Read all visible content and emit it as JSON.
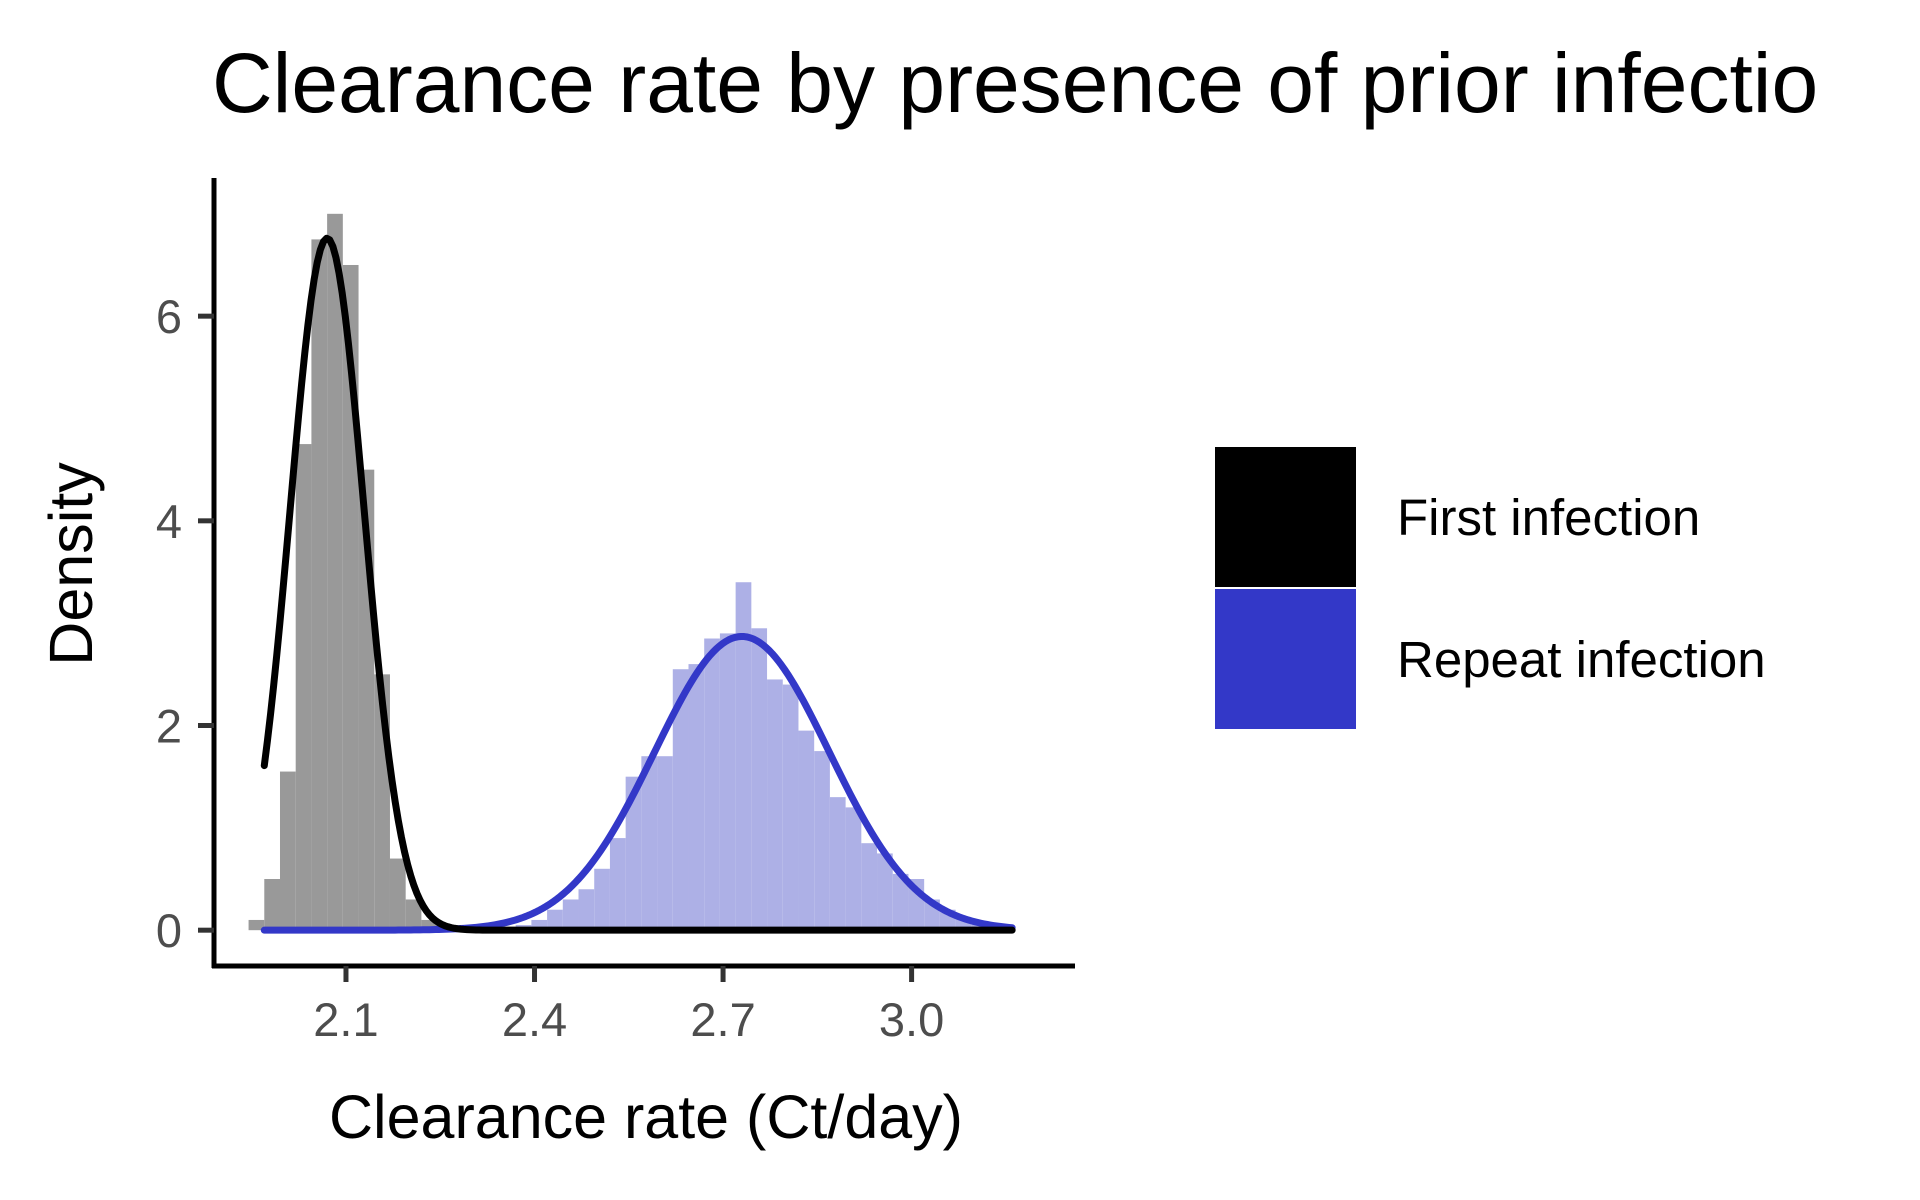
{
  "chart_data": {
    "type": "histogram-density",
    "title": "Clearance rate by presence of prior infectio",
    "xlabel": "Clearance rate (Ct/day)",
    "ylabel": "Density",
    "xlim": [
      1.89,
      3.26
    ],
    "ylim": [
      -0.35,
      7.35
    ],
    "x_ticks": [
      "2.1",
      "2.4",
      "2.7",
      "3.0"
    ],
    "y_ticks": [
      "0",
      "2",
      "4",
      "6"
    ],
    "grid": false,
    "legend_position": "right",
    "bin_width": 0.025,
    "series": [
      {
        "name": "First infection",
        "bar_color": "#999999",
        "line_color": "#000000",
        "bins": [
          {
            "x": 1.9575,
            "y": 0.1
          },
          {
            "x": 1.9825,
            "y": 0.5
          },
          {
            "x": 2.0075,
            "y": 1.55
          },
          {
            "x": 2.0325,
            "y": 4.75
          },
          {
            "x": 2.0575,
            "y": 6.75
          },
          {
            "x": 2.0825,
            "y": 7.0
          },
          {
            "x": 2.1075,
            "y": 6.5
          },
          {
            "x": 2.1325,
            "y": 4.5
          },
          {
            "x": 2.1575,
            "y": 2.5
          },
          {
            "x": 2.1825,
            "y": 0.7
          },
          {
            "x": 2.2075,
            "y": 0.3
          },
          {
            "x": 2.2325,
            "y": 0.1
          }
        ],
        "density": {
          "type": "normal",
          "mean": 2.07,
          "sd": 0.059
        }
      },
      {
        "name": "Repeat infection",
        "bar_color": "#adb0e6",
        "line_color": "#3338c8",
        "bins": [
          {
            "x": 2.3825,
            "y": 0.05
          },
          {
            "x": 2.4075,
            "y": 0.1
          },
          {
            "x": 2.4325,
            "y": 0.2
          },
          {
            "x": 2.4575,
            "y": 0.3
          },
          {
            "x": 2.4825,
            "y": 0.4
          },
          {
            "x": 2.5075,
            "y": 0.6
          },
          {
            "x": 2.5325,
            "y": 0.9
          },
          {
            "x": 2.5575,
            "y": 1.5
          },
          {
            "x": 2.5825,
            "y": 1.7
          },
          {
            "x": 2.6075,
            "y": 1.7
          },
          {
            "x": 2.6325,
            "y": 2.55
          },
          {
            "x": 2.6575,
            "y": 2.6
          },
          {
            "x": 2.6825,
            "y": 2.85
          },
          {
            "x": 2.7075,
            "y": 2.9
          },
          {
            "x": 2.7325,
            "y": 3.4
          },
          {
            "x": 2.7575,
            "y": 2.95
          },
          {
            "x": 2.7825,
            "y": 2.45
          },
          {
            "x": 2.8075,
            "y": 2.4
          },
          {
            "x": 2.8325,
            "y": 1.95
          },
          {
            "x": 2.8575,
            "y": 1.75
          },
          {
            "x": 2.8825,
            "y": 1.3
          },
          {
            "x": 2.9075,
            "y": 1.2
          },
          {
            "x": 2.9325,
            "y": 0.85
          },
          {
            "x": 2.9575,
            "y": 0.75
          },
          {
            "x": 2.9825,
            "y": 0.55
          },
          {
            "x": 3.0075,
            "y": 0.5
          },
          {
            "x": 3.0325,
            "y": 0.3
          },
          {
            "x": 3.0575,
            "y": 0.2
          },
          {
            "x": 3.0825,
            "y": 0.12
          },
          {
            "x": 3.1075,
            "y": 0.08
          },
          {
            "x": 3.1325,
            "y": 0.05
          }
        ],
        "density": {
          "type": "normal",
          "mean": 2.73,
          "sd": 0.139
        }
      }
    ],
    "density_x_range": [
      1.97,
      3.16
    ]
  }
}
